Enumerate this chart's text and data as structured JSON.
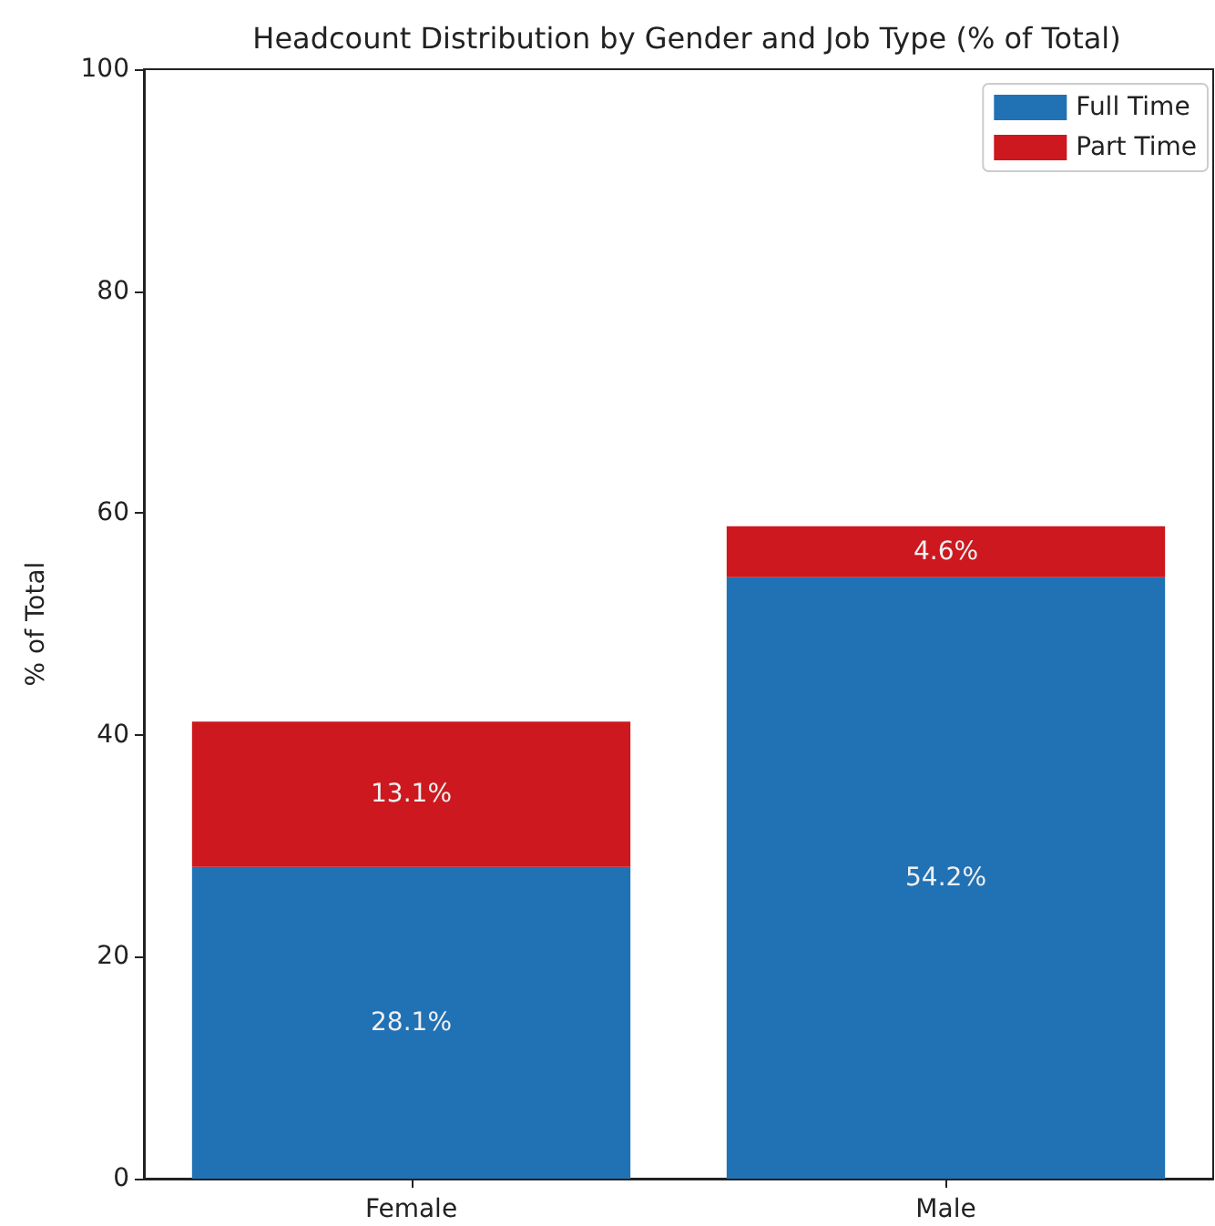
{
  "chart_data": {
    "type": "bar",
    "title": "Headcount Distribution by Gender and Job Type (% of Total)",
    "ylabel": "% of Total",
    "categories": [
      "Female",
      "Male"
    ],
    "stacked": true,
    "series": [
      {
        "name": "Full Time",
        "color": "#2171b5",
        "values": [
          28.1,
          54.2
        ],
        "value_labels": [
          "28.1%",
          "54.2%"
        ]
      },
      {
        "name": "Part Time",
        "color": "#cc181e",
        "values": [
          13.1,
          4.6
        ],
        "value_labels": [
          "13.1%",
          "4.6%"
        ]
      }
    ],
    "ylim": [
      0,
      100
    ],
    "yticks": [
      0,
      20,
      40,
      60,
      80,
      100
    ],
    "grid": false,
    "legend": "top right"
  }
}
